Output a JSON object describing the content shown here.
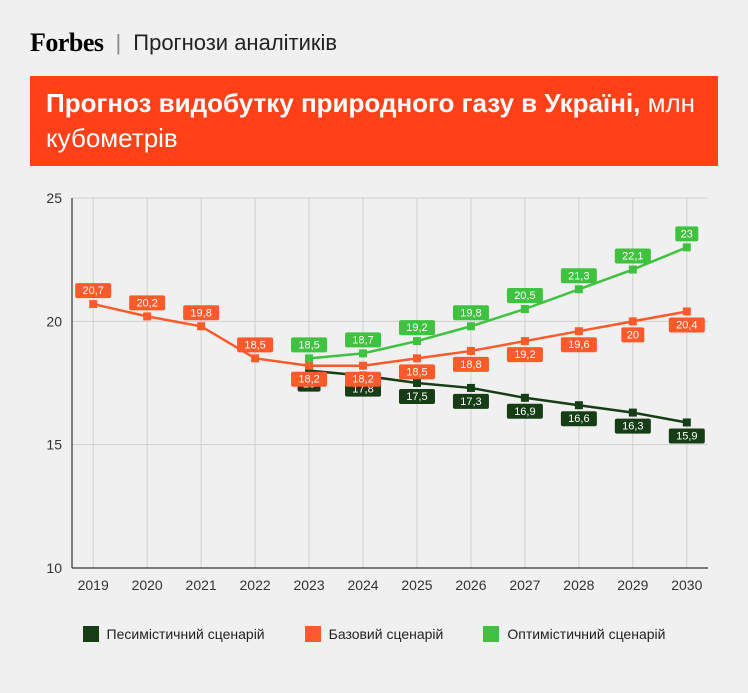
{
  "header": {
    "logo": "Forbes",
    "subtitle": "Прогнози аналітиків"
  },
  "title": {
    "bold": "Прогноз видобутку природного газу в Україні,",
    "rest": " млн кубометрів"
  },
  "chart": {
    "type": "line",
    "background_color": "#f0f0f0",
    "grid_color": "#d0d0d0",
    "axis_color": "#333333",
    "ylim": [
      10,
      25
    ],
    "yticks": [
      10,
      15,
      20,
      25
    ],
    "x_categories": [
      "2019",
      "2020",
      "2021",
      "2022",
      "2023",
      "2024",
      "2025",
      "2026",
      "2027",
      "2028",
      "2029",
      "2030"
    ],
    "label_fontsize": 14,
    "point_label_fontsize": 11,
    "line_width": 2.5,
    "marker_size": 4,
    "series": [
      {
        "name": "Песимістичний сценарій",
        "color": "#173d17",
        "start_index": 4,
        "values": [
          18,
          17.8,
          17.5,
          17.3,
          16.9,
          16.6,
          16.3,
          15.9
        ],
        "labels": [
          "18",
          "17,8",
          "17,5",
          "17,3",
          "16,9",
          "16,6",
          "16,3",
          "15,9"
        ],
        "label_pos": "below"
      },
      {
        "name": "Базовий сценарій",
        "color": "#ff5a2b",
        "start_index": 0,
        "values": [
          20.7,
          20.2,
          19.8,
          18.5,
          18.2,
          18.2,
          18.5,
          18.8,
          19.2,
          19.6,
          20,
          20.4
        ],
        "labels": [
          "20,7",
          "20,2",
          "19,8",
          "18,5",
          "18,2",
          "18,2",
          "18,5",
          "18,8",
          "19,2",
          "19,6",
          "20",
          "20,4"
        ],
        "label_pos": "mixed"
      },
      {
        "name": "Оптимістичний сценарій",
        "color": "#3fc23f",
        "start_index": 4,
        "values": [
          18.5,
          18.7,
          19.2,
          19.8,
          20.5,
          21.3,
          22.1,
          23
        ],
        "labels": [
          "18,5",
          "18,7",
          "19,2",
          "19,8",
          "20,5",
          "21,3",
          "22,1",
          "23"
        ],
        "label_pos": "above"
      }
    ]
  },
  "legend": {
    "items": [
      {
        "label": "Песимістичний сценарій",
        "color": "#173d17"
      },
      {
        "label": "Базовий сценарій",
        "color": "#ff5a2b"
      },
      {
        "label": "Оптимістичний сценарій",
        "color": "#3fc23f"
      }
    ]
  }
}
